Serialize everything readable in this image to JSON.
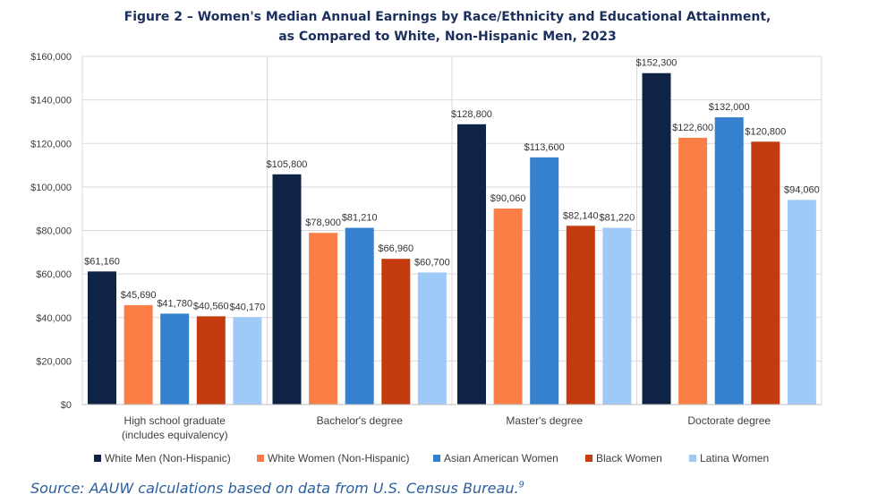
{
  "chart_data": {
    "type": "bar",
    "title_line1": "Figure 2 – Women's Median Annual Earnings by Race/Ethnicity and Educational Attainment,",
    "title_line2": "as Compared to White, Non-Hispanic Men, 2023",
    "xlabel": "",
    "ylabel": "",
    "ylim": [
      0,
      160000
    ],
    "yticks": [
      0,
      20000,
      40000,
      60000,
      80000,
      100000,
      120000,
      140000,
      160000
    ],
    "ytick_labels": [
      "$0",
      "$20,000",
      "$40,000",
      "$60,000",
      "$80,000",
      "$100,000",
      "$120,000",
      "$140,000",
      "$160,000"
    ],
    "grid": true,
    "legend_position": "bottom",
    "categories": [
      [
        "High school graduate",
        "(includes equivalency)"
      ],
      [
        "Bachelor's degree"
      ],
      [
        "Master's degree"
      ],
      [
        "Doctorate degree"
      ]
    ],
    "series": [
      {
        "name": "White Men (Non-Hispanic)",
        "color": "#0f2346",
        "values": [
          61160,
          105800,
          128800,
          152300
        ],
        "labels": [
          "$61,160",
          "$105,800",
          "$128,800",
          "$152,300"
        ]
      },
      {
        "name": "White Women (Non-Hispanic)",
        "color": "#fa7e45",
        "values": [
          45690,
          78900,
          90060,
          122600
        ],
        "labels": [
          "$45,690",
          "$78,900",
          "$90,060",
          "$122,600"
        ]
      },
      {
        "name": "Asian American Women",
        "color": "#3581d0",
        "values": [
          41780,
          81210,
          113600,
          132000
        ],
        "labels": [
          "$41,780",
          "$81,210",
          "$113,600",
          "$132,000"
        ]
      },
      {
        "name": "Black Women",
        "color": "#c33b0f",
        "values": [
          40560,
          66960,
          82140,
          120800
        ],
        "labels": [
          "$40,560",
          "$66,960",
          "$82,140",
          "$120,800"
        ]
      },
      {
        "name": "Latina Women",
        "color": "#9fc9f6",
        "values": [
          40170,
          60700,
          81220,
          94060
        ],
        "labels": [
          "$40,170",
          "$60,700",
          "$81,220",
          "$94,060"
        ]
      }
    ]
  },
  "source": {
    "text": "Source: AAUW calculations based on data from U.S. Census Bureau.",
    "footnote": "9"
  }
}
